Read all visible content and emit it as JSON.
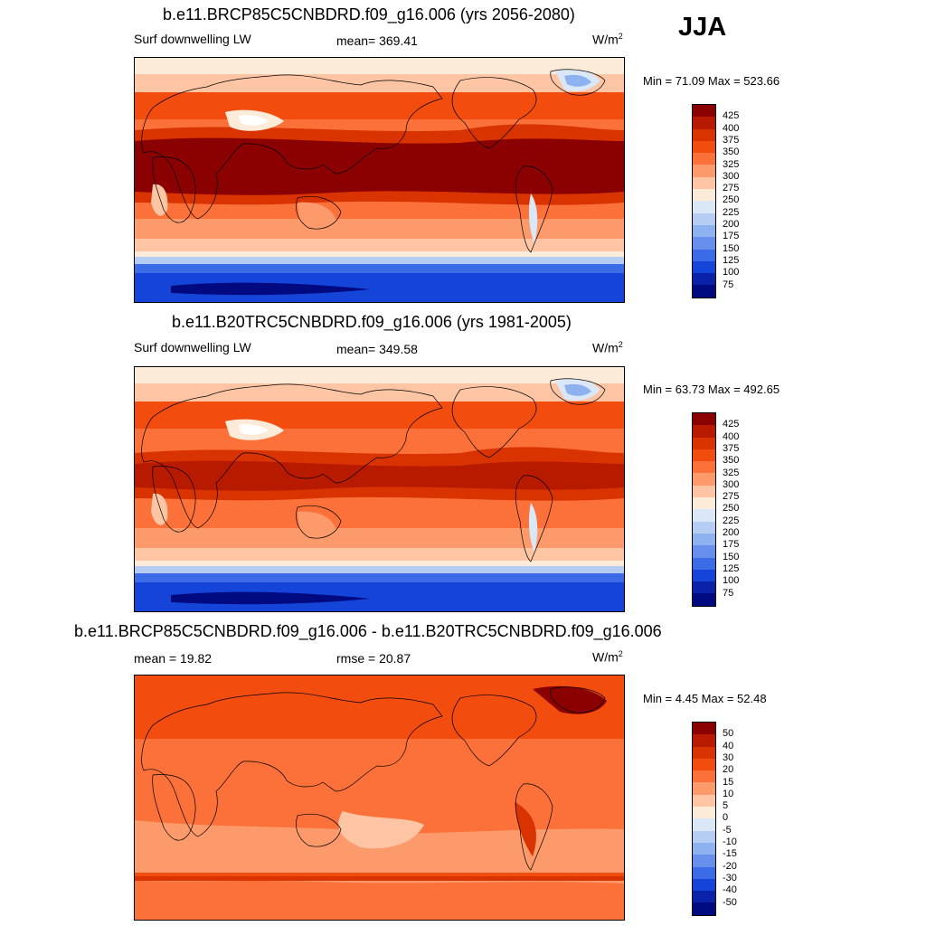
{
  "season": "JJA",
  "panels": [
    {
      "title": "b.e11.BRCP85C5CNBDRD.f09_g16.006 (yrs 2056-2080)",
      "left_label": "Surf downwelling LW",
      "center_label": "mean= 369.41",
      "units": "W/m",
      "units_sup": "2",
      "minmax": "Min =  71.09 Max = 523.66",
      "colorbar": {
        "labels": [
          "425",
          "400",
          "375",
          "350",
          "325",
          "300",
          "275",
          "250",
          "225",
          "200",
          "175",
          "150",
          "125",
          "100",
          "75"
        ],
        "colors": [
          "#8b0000",
          "#b81a00",
          "#d83300",
          "#f24d0f",
          "#fb7139",
          "#fd9a6c",
          "#fdc5a3",
          "#fdebd9",
          "#d9e7f7",
          "#b5cdf3",
          "#8eb1ef",
          "#6690ec",
          "#3b6be6",
          "#1444d8",
          "#0a22a8",
          "#000a80"
        ]
      },
      "map_style": "base"
    },
    {
      "title": "b.e11.B20TRC5CNBDRD.f09_g16.006 (yrs 1981-2005)",
      "left_label": "Surf downwelling LW",
      "center_label": "mean= 349.58",
      "units": "W/m",
      "units_sup": "2",
      "minmax": "Min =  63.73 Max = 492.65",
      "colorbar": {
        "labels": [
          "425",
          "400",
          "375",
          "350",
          "325",
          "300",
          "275",
          "250",
          "225",
          "200",
          "175",
          "150",
          "125",
          "100",
          "75"
        ],
        "colors": [
          "#8b0000",
          "#b81a00",
          "#d83300",
          "#f24d0f",
          "#fb7139",
          "#fd9a6c",
          "#fdc5a3",
          "#fdebd9",
          "#d9e7f7",
          "#b5cdf3",
          "#8eb1ef",
          "#6690ec",
          "#3b6be6",
          "#1444d8",
          "#0a22a8",
          "#000a80"
        ]
      },
      "map_style": "base"
    },
    {
      "title": "b.e11.BRCP85C5CNBDRD.f09_g16.006 - b.e11.B20TRC5CNBDRD.f09_g16.006",
      "left_label": "mean =  19.82",
      "center_label": "rmse =  20.87",
      "units": "W/m",
      "units_sup": "2",
      "minmax": "Min =   4.45 Max =  52.48",
      "colorbar": {
        "labels": [
          "50",
          "40",
          "30",
          "20",
          "15",
          "10",
          "5",
          "0",
          "-5",
          "-10",
          "-15",
          "-20",
          "-30",
          "-40",
          "-50"
        ],
        "colors": [
          "#8b0000",
          "#b81a00",
          "#d83300",
          "#f24d0f",
          "#fb7139",
          "#fd9a6c",
          "#fdc5a3",
          "#fdebd9",
          "#d9e7f7",
          "#b5cdf3",
          "#8eb1ef",
          "#6690ec",
          "#3b6be6",
          "#1444d8",
          "#0a22a8",
          "#000a80"
        ]
      },
      "map_style": "diff"
    }
  ]
}
